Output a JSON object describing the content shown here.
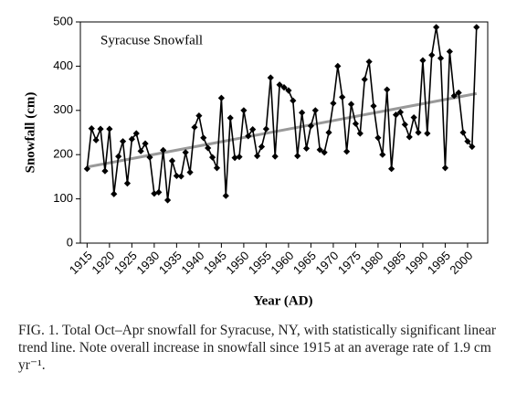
{
  "chart_data": {
    "type": "line",
    "title": "Syracuse Snowfall",
    "x_label": "Year (AD)",
    "y_label": "Snowfall (cm)",
    "caption": "FIG. 1. Total Oct–Apr snowfall for Syracuse, NY, with statistically significant linear trend line. Note overall increase in snowfall since 1915 at an average rate of 1.9 cm yr⁻¹.",
    "x": [
      1915,
      1916,
      1917,
      1918,
      1919,
      1920,
      1921,
      1922,
      1923,
      1924,
      1925,
      1926,
      1927,
      1928,
      1929,
      1930,
      1931,
      1932,
      1933,
      1934,
      1935,
      1936,
      1937,
      1938,
      1939,
      1940,
      1941,
      1942,
      1943,
      1944,
      1945,
      1946,
      1947,
      1948,
      1949,
      1950,
      1951,
      1952,
      1953,
      1954,
      1955,
      1956,
      1957,
      1958,
      1959,
      1960,
      1961,
      1962,
      1963,
      1964,
      1965,
      1966,
      1967,
      1968,
      1969,
      1970,
      1971,
      1972,
      1973,
      1974,
      1975,
      1976,
      1977,
      1978,
      1979,
      1980,
      1981,
      1982,
      1983,
      1984,
      1985,
      1986,
      1987,
      1988,
      1989,
      1990,
      1991,
      1992,
      1993,
      1994,
      1995,
      1996,
      1997,
      1998,
      1999,
      2000,
      2001,
      2002
    ],
    "values": [
      168,
      259,
      233,
      258,
      163,
      258,
      111,
      196,
      230,
      135,
      235,
      248,
      208,
      225,
      194,
      112,
      115,
      210,
      97,
      186,
      152,
      151,
      205,
      160,
      262,
      288,
      238,
      215,
      194,
      170,
      328,
      107,
      283,
      193,
      195,
      300,
      242,
      257,
      197,
      218,
      258,
      374,
      196,
      358,
      352,
      345,
      322,
      197,
      295,
      214,
      265,
      300,
      211,
      205,
      250,
      316,
      400,
      330,
      207,
      314,
      270,
      248,
      370,
      410,
      310,
      238,
      200,
      347,
      168,
      290,
      296,
      268,
      240,
      284,
      250,
      413,
      248,
      425,
      488,
      418,
      170,
      433,
      333,
      340,
      250,
      230,
      218,
      488
    ],
    "color": "#000000",
    "trend": {
      "x": [
        1915,
        2002
      ],
      "values": [
        172,
        338
      ],
      "color": "#999999"
    },
    "xlim": [
      1913.5,
      2004.5
    ],
    "xticks": [
      1915,
      1920,
      1925,
      1930,
      1935,
      1940,
      1945,
      1950,
      1955,
      1960,
      1965,
      1970,
      1975,
      1980,
      1985,
      1990,
      1995,
      2000
    ],
    "ylim": [
      0,
      500
    ],
    "yticks": [
      0,
      100,
      200,
      300,
      400,
      500
    ]
  }
}
